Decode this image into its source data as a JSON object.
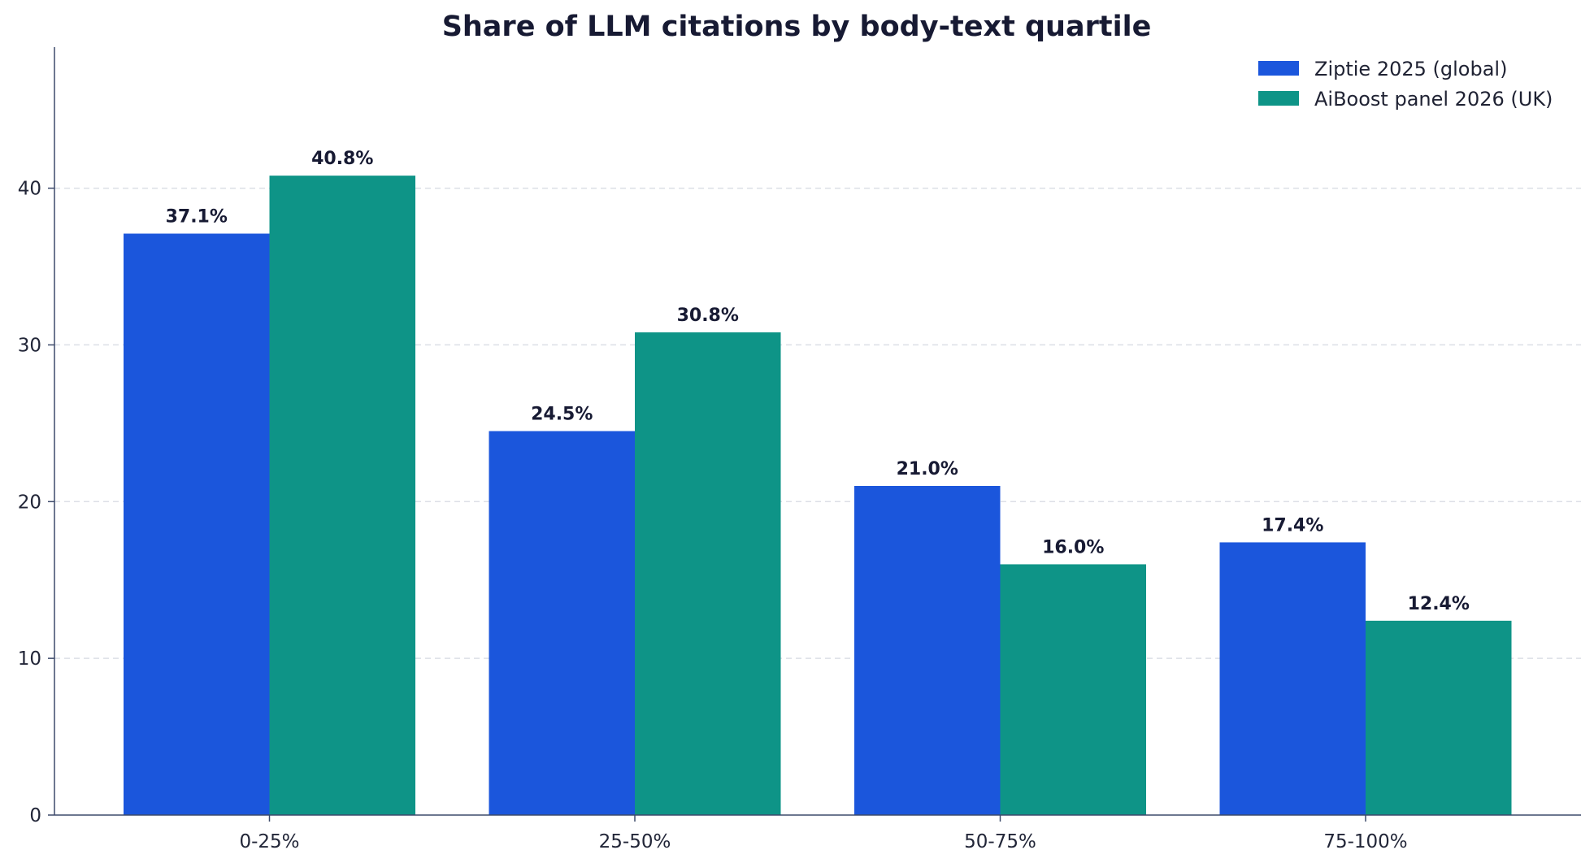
{
  "chart_data": {
    "type": "bar",
    "title": "Share of LLM citations by body-text quartile",
    "xlabel": "",
    "ylabel": "",
    "categories": [
      "0-25%",
      "25-50%",
      "50-75%",
      "75-100%"
    ],
    "series": [
      {
        "name": "Ziptie 2025 (global)",
        "color": "#1b56dc",
        "values": [
          37.1,
          24.5,
          21.0,
          17.4
        ],
        "labels": [
          "37.1%",
          "24.5%",
          "21.0%",
          "17.4%"
        ]
      },
      {
        "name": "AiBoost panel 2026 (UK)",
        "color": "#0e9487",
        "values": [
          40.8,
          30.8,
          16.0,
          12.4
        ],
        "labels": [
          "40.8%",
          "30.8%",
          "16.0%",
          "12.4%"
        ]
      }
    ],
    "ylim": [
      0,
      49
    ],
    "yticks": [
      0,
      10,
      20,
      30,
      40
    ],
    "ytick_labels": [
      "0",
      "10",
      "20",
      "30",
      "40"
    ],
    "grid": true,
    "grid_axis": "y",
    "legend_position": "top-right"
  }
}
